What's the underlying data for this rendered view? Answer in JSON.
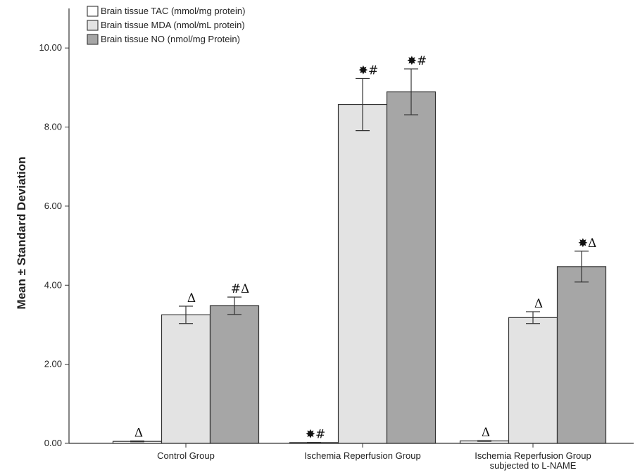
{
  "chart_data": {
    "type": "bar",
    "ylabel": "Mean ± Standard Deviation",
    "xlabel": "",
    "ylim": [
      0,
      11
    ],
    "yticks": [
      "0.00",
      "2.00",
      "4.00",
      "6.00",
      "8.00",
      "10.00"
    ],
    "ytick_values": [
      0,
      2,
      4,
      6,
      8,
      10
    ],
    "categories": [
      [
        "Control Group"
      ],
      [
        "Ischemia Reperfusion Group"
      ],
      [
        "Ischemia Reperfusion Group",
        "subjected to L-NAME"
      ]
    ],
    "legend_position": "top-left",
    "series": [
      {
        "name": "Brain tissue TAC (mmol/mg protein)",
        "color": "#ffffff",
        "values": [
          0.05,
          0.02,
          0.06
        ],
        "errors": [
          0.01,
          0.005,
          0.01
        ],
        "annotations": [
          "Δ",
          "✸#",
          "Δ"
        ]
      },
      {
        "name": "Brain tissue MDA (nmol/mL protein)",
        "color": "#e3e3e3",
        "values": [
          3.25,
          8.57,
          3.18
        ],
        "errors": [
          0.22,
          0.66,
          0.15
        ],
        "annotations": [
          "Δ",
          "✸#",
          "Δ"
        ]
      },
      {
        "name": "Brain tissue NO (nmol/mg Protein)",
        "color": "#a6a6a6",
        "values": [
          3.48,
          8.89,
          4.47
        ],
        "errors": [
          0.22,
          0.58,
          0.39
        ],
        "annotations": [
          "#Δ",
          "✸#",
          "✸Δ"
        ]
      }
    ]
  }
}
